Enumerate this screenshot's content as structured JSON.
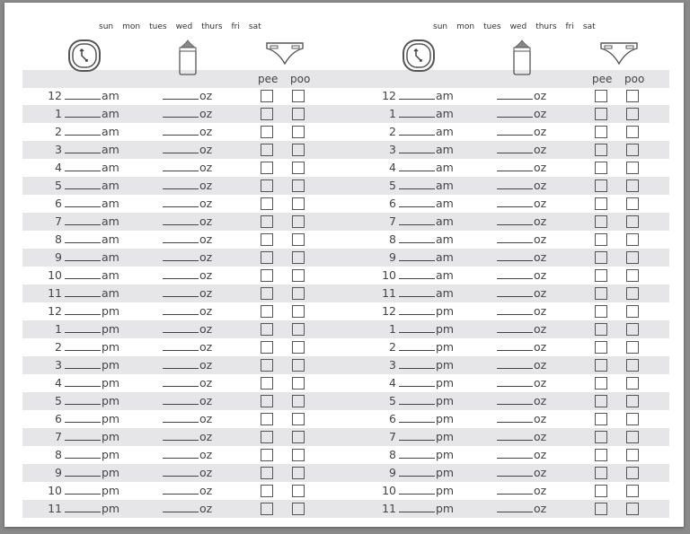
{
  "days": [
    "sun",
    "mon",
    "tues",
    "wed",
    "thurs",
    "fri",
    "sat"
  ],
  "columns": {
    "pee": "pee",
    "poo": "poo"
  },
  "icons": [
    "clock-icon",
    "bottle-icon",
    "diaper-icon"
  ],
  "unit_oz": "oz",
  "rows": [
    {
      "hour": "12",
      "period": "am"
    },
    {
      "hour": "1",
      "period": "am"
    },
    {
      "hour": "2",
      "period": "am"
    },
    {
      "hour": "3",
      "period": "am"
    },
    {
      "hour": "4",
      "period": "am"
    },
    {
      "hour": "5",
      "period": "am"
    },
    {
      "hour": "6",
      "period": "am"
    },
    {
      "hour": "7",
      "period": "am"
    },
    {
      "hour": "8",
      "period": "am"
    },
    {
      "hour": "9",
      "period": "am"
    },
    {
      "hour": "10",
      "period": "am"
    },
    {
      "hour": "11",
      "period": "am"
    },
    {
      "hour": "12",
      "period": "pm"
    },
    {
      "hour": "1",
      "period": "pm"
    },
    {
      "hour": "2",
      "period": "pm"
    },
    {
      "hour": "3",
      "period": "pm"
    },
    {
      "hour": "4",
      "period": "pm"
    },
    {
      "hour": "5",
      "period": "pm"
    },
    {
      "hour": "6",
      "period": "pm"
    },
    {
      "hour": "7",
      "period": "pm"
    },
    {
      "hour": "8",
      "period": "pm"
    },
    {
      "hour": "9",
      "period": "pm"
    },
    {
      "hour": "10",
      "period": "pm"
    },
    {
      "hour": "11",
      "period": "pm"
    }
  ]
}
